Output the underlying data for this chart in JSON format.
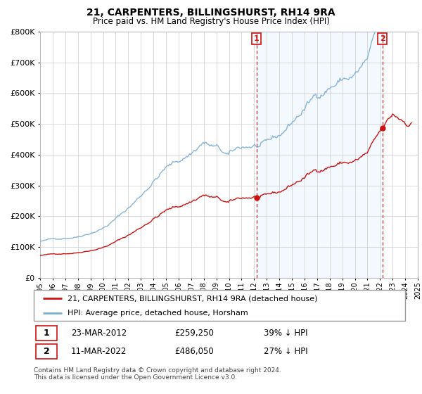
{
  "title": "21, CARPENTERS, BILLINGSHURST, RH14 9RA",
  "subtitle": "Price paid vs. HM Land Registry's House Price Index (HPI)",
  "hpi_color": "#7aadd4",
  "price_color": "#cc1111",
  "vline_color": "#cc1111",
  "shade_color": "#ddeeff",
  "legend_label_1": "21, CARPENTERS, BILLINGSHURST, RH14 9RA (detached house)",
  "legend_label_2": "HPI: Average price, detached house, Horsham",
  "annotation_1_date": "23-MAR-2012",
  "annotation_1_price": "£259,250",
  "annotation_1_pct": "39% ↓ HPI",
  "annotation_2_date": "11-MAR-2022",
  "annotation_2_price": "£486,050",
  "annotation_2_pct": "27% ↓ HPI",
  "footer": "Contains HM Land Registry data © Crown copyright and database right 2024.\nThis data is licensed under the Open Government Licence v3.0.",
  "ylim_min": 0,
  "ylim_max": 800000,
  "sale_year_1": 2012.19,
  "sale_price_1": 259250,
  "sale_year_2": 2022.19,
  "sale_price_2": 486050,
  "hpi_scale_at_sale1": 424000,
  "hpi_scale_at_sale2": 665000
}
